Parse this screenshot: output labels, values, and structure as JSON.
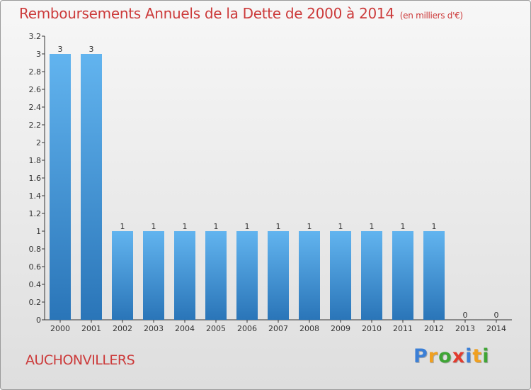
{
  "title": "Remboursements Annuels de la Dette de 2000 à 2014",
  "unit": "(en milliers d'€)",
  "commune": "AUCHONVILLERS",
  "logo": {
    "letters": [
      "P",
      "r",
      "o",
      "x",
      "i",
      "t",
      "i"
    ],
    "colors": [
      "#3b7fd6",
      "#f0a020",
      "#3fa535",
      "#e23b2e",
      "#3b7fd6",
      "#f0a020",
      "#3fa535"
    ]
  },
  "chart_data": {
    "type": "bar",
    "categories": [
      "2000",
      "2001",
      "2002",
      "2003",
      "2004",
      "2005",
      "2006",
      "2007",
      "2008",
      "2009",
      "2010",
      "2011",
      "2012",
      "2013",
      "2014"
    ],
    "values": [
      3,
      3,
      1,
      1,
      1,
      1,
      1,
      1,
      1,
      1,
      1,
      1,
      1,
      0,
      0
    ],
    "data_labels": [
      "3",
      "3",
      "1",
      "1",
      "1",
      "1",
      "1",
      "1",
      "1",
      "1",
      "1",
      "1",
      "1",
      "0",
      "0"
    ],
    "y_ticks": [
      "0",
      "0.2",
      "0.4",
      "0.6",
      "0.8",
      "1",
      "1.2",
      "1.4",
      "1.6",
      "1.8",
      "2",
      "2.2",
      "2.4",
      "2.6",
      "2.8",
      "3",
      "3.2"
    ],
    "ylim": [
      0,
      3.2
    ],
    "grid": false,
    "bar_color": "#3a8fd6"
  }
}
